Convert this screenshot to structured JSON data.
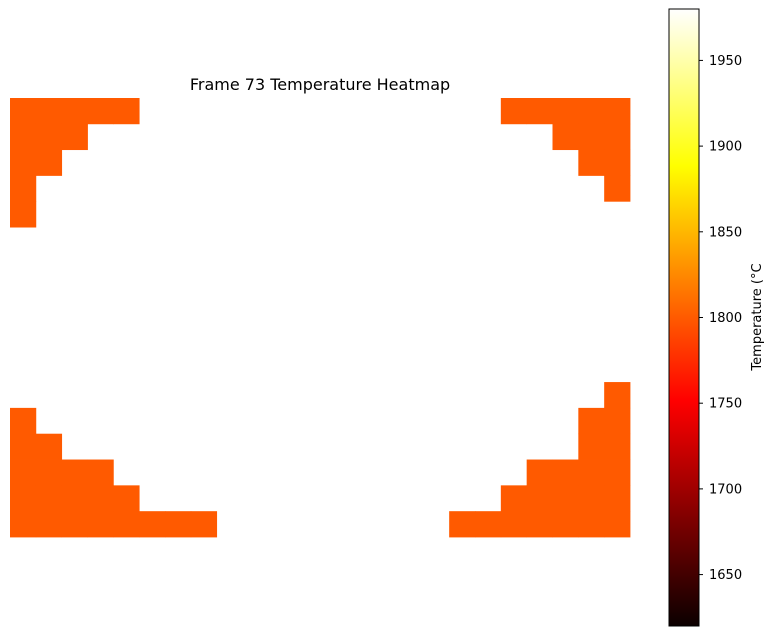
{
  "chart_data": {
    "type": "heatmap",
    "title": "Frame 73 Temperature Heatmap",
    "grid_cols": 24,
    "grid_rows": 17,
    "cell_value": 1810,
    "cell_color": "#ff5a00",
    "cells": [
      [
        0,
        0
      ],
      [
        1,
        0
      ],
      [
        2,
        0
      ],
      [
        3,
        0
      ],
      [
        4,
        0
      ],
      [
        0,
        1
      ],
      [
        1,
        1
      ],
      [
        2,
        1
      ],
      [
        0,
        2
      ],
      [
        1,
        2
      ],
      [
        0,
        3
      ],
      [
        0,
        4
      ],
      [
        19,
        0
      ],
      [
        20,
        0
      ],
      [
        21,
        0
      ],
      [
        22,
        0
      ],
      [
        23,
        0
      ],
      [
        21,
        1
      ],
      [
        22,
        1
      ],
      [
        23,
        1
      ],
      [
        22,
        2
      ],
      [
        23,
        2
      ],
      [
        23,
        3
      ],
      [
        0,
        12
      ],
      [
        0,
        13
      ],
      [
        1,
        13
      ],
      [
        0,
        14
      ],
      [
        1,
        14
      ],
      [
        2,
        14
      ],
      [
        3,
        14
      ],
      [
        0,
        15
      ],
      [
        1,
        15
      ],
      [
        2,
        15
      ],
      [
        3,
        15
      ],
      [
        4,
        15
      ],
      [
        0,
        16
      ],
      [
        1,
        16
      ],
      [
        2,
        16
      ],
      [
        3,
        16
      ],
      [
        4,
        16
      ],
      [
        5,
        16
      ],
      [
        6,
        16
      ],
      [
        7,
        16
      ],
      [
        23,
        11
      ],
      [
        22,
        12
      ],
      [
        23,
        12
      ],
      [
        22,
        13
      ],
      [
        23,
        13
      ],
      [
        20,
        14
      ],
      [
        21,
        14
      ],
      [
        22,
        14
      ],
      [
        23,
        14
      ],
      [
        19,
        15
      ],
      [
        20,
        15
      ],
      [
        21,
        15
      ],
      [
        22,
        15
      ],
      [
        23,
        15
      ],
      [
        17,
        16
      ],
      [
        18,
        16
      ],
      [
        19,
        16
      ],
      [
        20,
        16
      ],
      [
        21,
        16
      ],
      [
        22,
        16
      ],
      [
        23,
        16
      ]
    ],
    "colorbar": {
      "label": "Temperature (°C",
      "colormap": "hot",
      "min": 1620,
      "max": 1980,
      "ticks": [
        "1650",
        "1700",
        "1750",
        "1800",
        "1850",
        "1900",
        "1950"
      ]
    }
  }
}
